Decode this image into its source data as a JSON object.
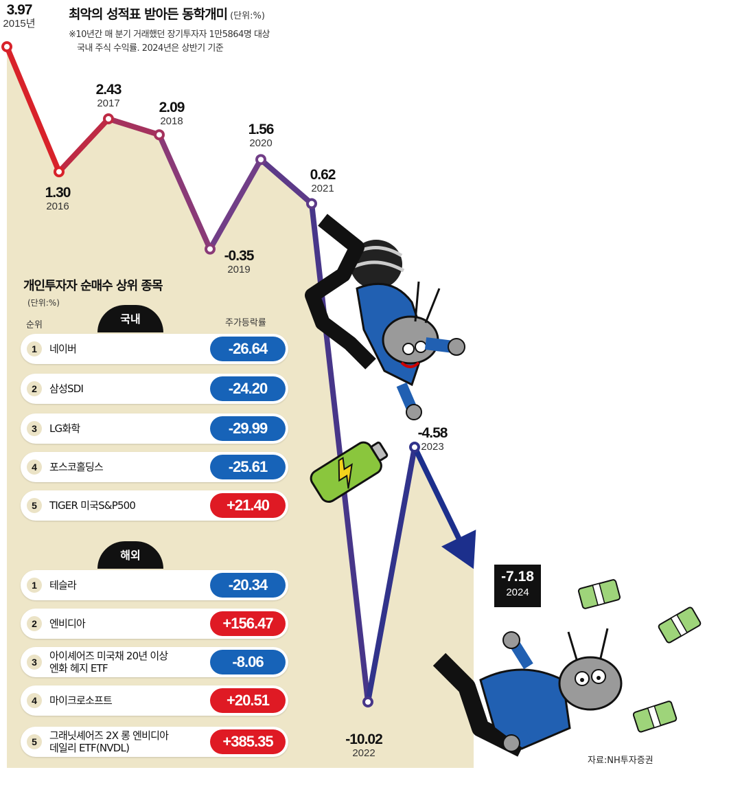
{
  "header": {
    "title": "최악의 성적표 받아든 동학개미",
    "unit": "(단위:%)",
    "note_line1": "※10년간 매 분기 거래했던 장기투자자 1만5864명 대상",
    "note_line2": "국내 주식 수익률. 2024년은 상반기 기준"
  },
  "chart_data": {
    "type": "line",
    "x": [
      "2015년",
      "2016",
      "2017",
      "2018",
      "2019",
      "2020",
      "2021",
      "2022",
      "2023",
      "2024"
    ],
    "values": [
      "3.97",
      "1.30",
      "2.43",
      "2.09",
      "-0.35",
      "1.56",
      "0.62",
      "-10.02",
      "-4.58",
      "-7.18"
    ],
    "numeric_values": [
      3.97,
      1.3,
      2.43,
      2.09,
      -0.35,
      1.56,
      0.62,
      -10.02,
      -4.58,
      -7.18
    ],
    "ylim": [
      -10.02,
      3.97
    ],
    "grid": false,
    "colors": {
      "line_start": "#d8222a",
      "line_mid": "#7a3f86",
      "line_end": "#1c2f8c",
      "area_fill": "#eee6c8"
    }
  },
  "panel": {
    "title": "개인투자자 순매수 상위 종목",
    "unit": "(단위:%)",
    "col_rank": "순위",
    "col_change": "주가등락률",
    "domestic": {
      "tab": "국내",
      "rows": [
        {
          "rank": "1",
          "name": "네이버",
          "change": "-26.64",
          "sign": "neg"
        },
        {
          "rank": "2",
          "name": "삼성SDI",
          "change": "-24.20",
          "sign": "neg"
        },
        {
          "rank": "3",
          "name": "LG화학",
          "change": "-29.99",
          "sign": "neg"
        },
        {
          "rank": "4",
          "name": "포스코홀딩스",
          "change": "-25.61",
          "sign": "neg"
        },
        {
          "rank": "5",
          "name": "TIGER 미국S&P500",
          "change": "+21.40",
          "sign": "pos"
        }
      ]
    },
    "overseas": {
      "tab": "해외",
      "rows": [
        {
          "rank": "1",
          "name": "테슬라",
          "change": "-20.34",
          "sign": "neg"
        },
        {
          "rank": "2",
          "name": "엔비디아",
          "change": "+156.47",
          "sign": "pos"
        },
        {
          "rank": "3",
          "name": "아이셰어즈 미국채 20년 이상\n엔화 헤지 ETF",
          "change": "-8.06",
          "sign": "neg"
        },
        {
          "rank": "4",
          "name": "마이크로소프트",
          "change": "+20.51",
          "sign": "pos"
        },
        {
          "rank": "5",
          "name": "그래닛셰어즈 2X 롱 엔비디아\n데일리 ETF(NVDL)",
          "change": "+385.35",
          "sign": "pos"
        }
      ]
    }
  },
  "source": "자료:NH투자증권"
}
